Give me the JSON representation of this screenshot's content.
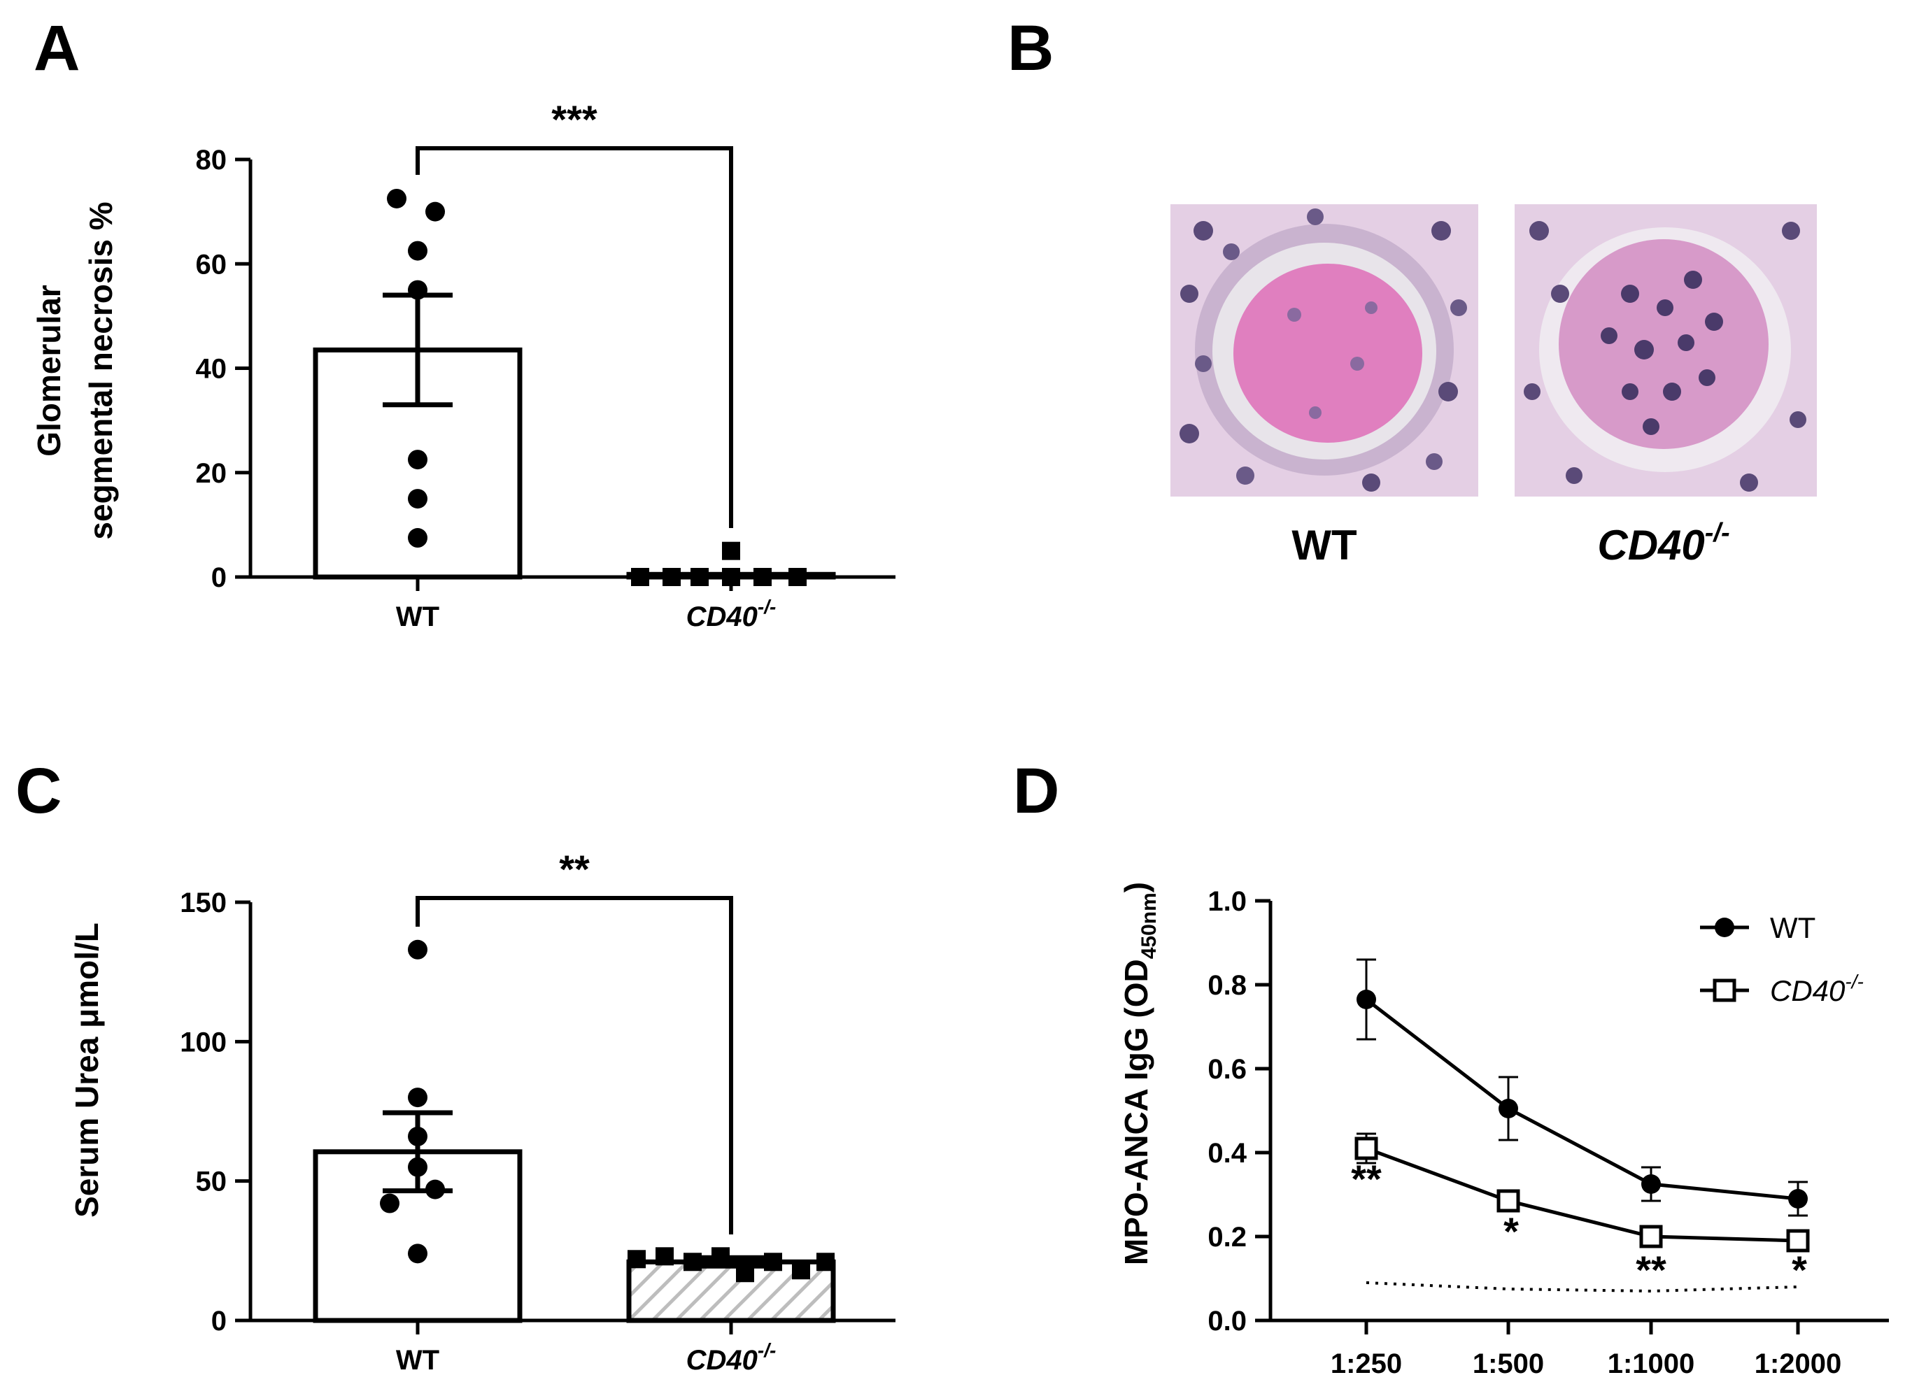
{
  "panels": {
    "A": {
      "letter": "A"
    },
    "B": {
      "letter": "B",
      "labels": [
        "WT",
        "CD40-/-"
      ]
    },
    "C": {
      "letter": "C"
    },
    "D": {
      "letter": "D"
    }
  },
  "colors": {
    "ink": "#000000",
    "hatch": "#bdbdbd",
    "tissue_pink": "#d98cc0",
    "tissue_bg": "#e8d6ea",
    "nuclei": "#4a3a6a"
  },
  "chart_data": [
    {
      "id": "A",
      "type": "bar",
      "title": "",
      "ylabel": [
        "Glomerular",
        "segmental necrosis %"
      ],
      "categories": [
        "WT",
        "CD40-/-"
      ],
      "values": [
        43.5,
        0.5
      ],
      "errors": [
        10.5,
        0
      ],
      "points": [
        [
          72.5,
          70,
          62.5,
          55,
          22.5,
          15,
          7.5
        ],
        [
          5,
          0,
          0,
          0,
          0,
          0,
          0
        ]
      ],
      "ylim": [
        0,
        80
      ],
      "yticks": [
        0,
        20,
        40,
        60,
        80
      ],
      "significance": "***"
    },
    {
      "id": "C",
      "type": "bar",
      "title": "",
      "ylabel": [
        "Serum Urea μmol/L"
      ],
      "categories": [
        "WT",
        "CD40-/-"
      ],
      "values": [
        60.5,
        21
      ],
      "errors": [
        14,
        1.5
      ],
      "points": [
        [
          133,
          80,
          66,
          55,
          47,
          42,
          24
        ],
        [
          22,
          23,
          21,
          23,
          17,
          21,
          18,
          21
        ]
      ],
      "ylim": [
        0,
        150
      ],
      "yticks": [
        0,
        50,
        100,
        150
      ],
      "significance": "**"
    },
    {
      "id": "D",
      "type": "line",
      "title": "",
      "ylabel": [
        "MPO-ANCA IgG (OD",
        "450nm",
        ")"
      ],
      "x": [
        "1:250",
        "1:500",
        "1:1000",
        "1:2000"
      ],
      "ylim": [
        0,
        1.0
      ],
      "yticks": [
        "0.0",
        "0.2",
        "0.4",
        "0.6",
        "0.8",
        "1.0"
      ],
      "series": [
        {
          "name": "WT",
          "values": [
            0.765,
            0.505,
            0.325,
            0.29
          ],
          "errors": [
            0.095,
            0.075,
            0.04,
            0.04
          ]
        },
        {
          "name": "CD40-/-",
          "values": [
            0.41,
            0.285,
            0.2,
            0.19
          ],
          "errors": [
            0.035,
            0.015,
            0.01,
            0.01
          ]
        }
      ],
      "baseline": [
        0.09,
        0.075,
        0.07,
        0.08
      ],
      "significance": [
        "**",
        "*",
        "**",
        "*"
      ],
      "legend": "top-right"
    }
  ]
}
